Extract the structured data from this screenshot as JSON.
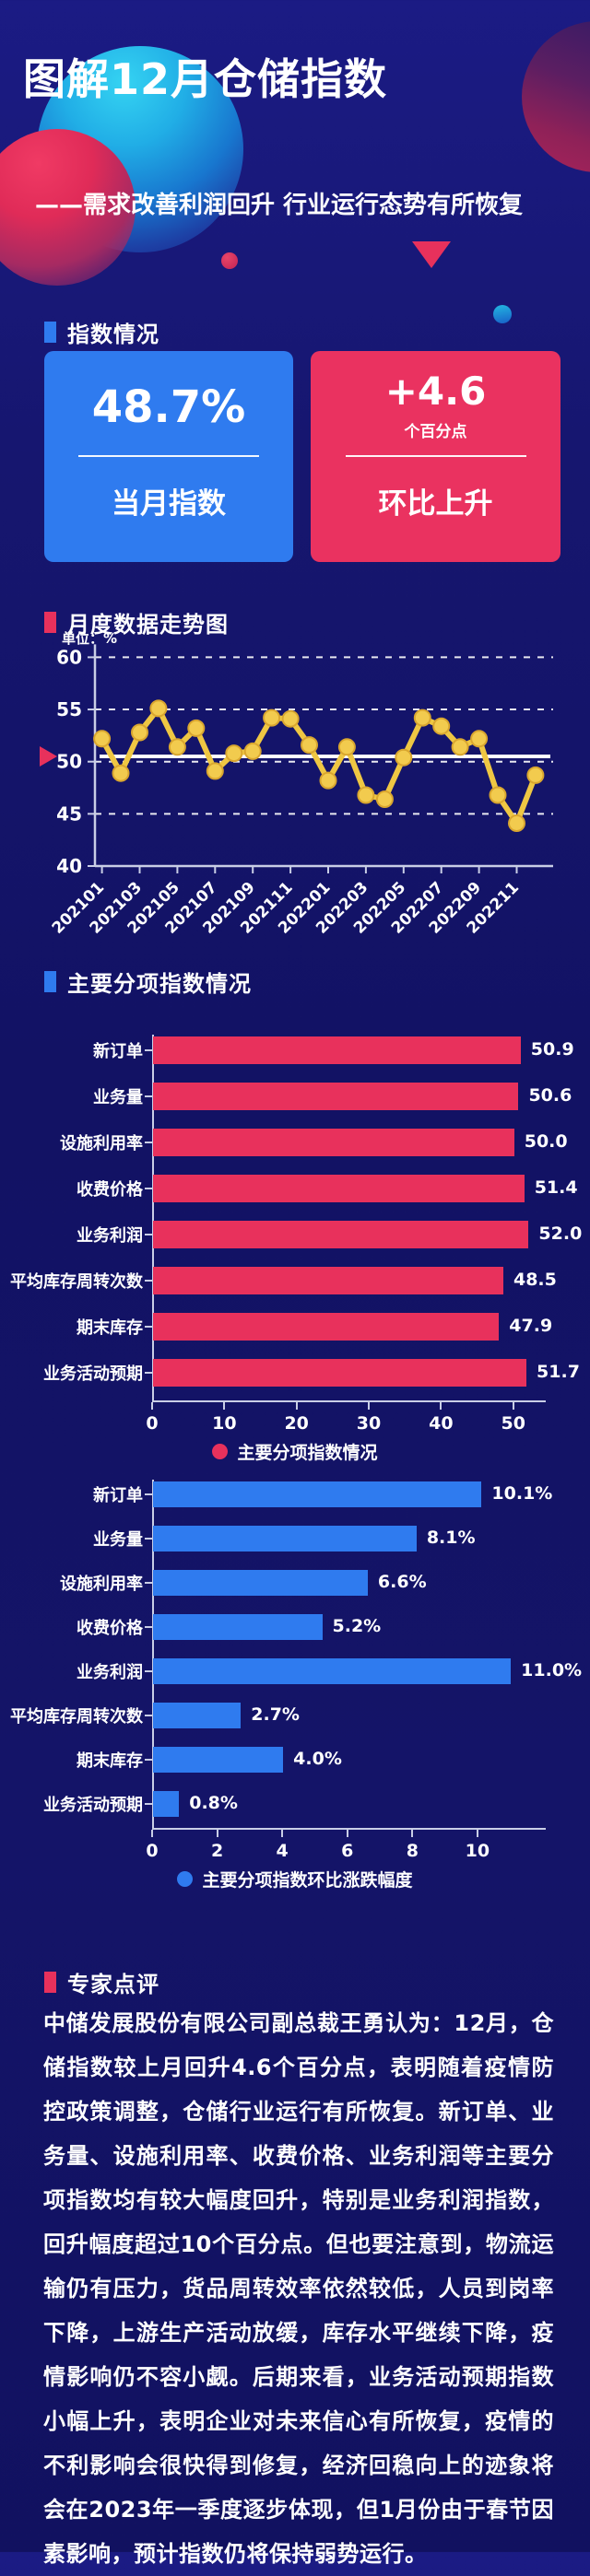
{
  "header": {
    "title": "图解12月仓储指数",
    "subtitle": "——需求改善利润回升 行业运行态势有所恢复"
  },
  "sections": {
    "index_overview": "指数情况",
    "monthly_trend": "月度数据走势图",
    "sub_indices": "主要分项指数情况",
    "expert_comment": "专家点评"
  },
  "cards": {
    "current": {
      "value": "48.7%",
      "label": "当月指数"
    },
    "change": {
      "value": "+4.6",
      "unit": "个百分点",
      "label": "环比上升"
    }
  },
  "chart_data": [
    {
      "type": "line",
      "title": "月度数据走势图",
      "unit_label": "单位：%",
      "x": [
        "202101",
        "202102",
        "202103",
        "202104",
        "202105",
        "202106",
        "202107",
        "202108",
        "202109",
        "202110",
        "202111",
        "202112",
        "202201",
        "202202",
        "202203",
        "202204",
        "202205",
        "202206",
        "202207",
        "202208",
        "202209",
        "202210",
        "202211",
        "202212"
      ],
      "values": [
        52.2,
        48.9,
        52.8,
        55.1,
        51.4,
        53.2,
        49.1,
        50.8,
        51.0,
        54.2,
        54.1,
        51.6,
        48.2,
        51.4,
        46.8,
        46.4,
        50.4,
        54.2,
        53.4,
        51.4,
        52.2,
        46.8,
        44.1,
        48.7
      ],
      "x_tick_labels": [
        "202101",
        "202103",
        "202105",
        "202107",
        "202109",
        "202111",
        "202201",
        "202203",
        "202205",
        "202207",
        "202209",
        "202211"
      ],
      "ylim": [
        40,
        60
      ],
      "yticks": [
        40,
        45,
        50,
        55,
        60
      ],
      "reference_line": 50.5,
      "grid": "dashed horizontal gridlines",
      "line_color": "#EFC743",
      "marker_color": "#F2CB4E"
    },
    {
      "type": "bar",
      "orientation": "horizontal",
      "categories": [
        "新订单",
        "业务量",
        "设施利用率",
        "收费价格",
        "业务利润",
        "平均库存周转次数",
        "期末库存",
        "业务活动预期"
      ],
      "values": [
        50.9,
        50.6,
        50.0,
        51.4,
        52.0,
        48.5,
        47.9,
        51.7
      ],
      "value_labels": [
        "50.9",
        "50.6",
        "50.0",
        "51.4",
        "52.0",
        "48.5",
        "47.9",
        "51.7"
      ],
      "xticks": [
        0,
        10,
        20,
        30,
        40,
        50
      ],
      "xlim": [
        0,
        54.5
      ],
      "legend": "主要分项指数情况",
      "legend_position": "bottom center",
      "bar_color": "#E8315C"
    },
    {
      "type": "bar",
      "orientation": "horizontal",
      "categories": [
        "新订单",
        "业务量",
        "设施利用率",
        "收费价格",
        "业务利润",
        "平均库存周转次数",
        "期末库存",
        "业务活动预期"
      ],
      "values": [
        10.1,
        8.1,
        6.6,
        5.2,
        11.0,
        2.7,
        4.0,
        0.8
      ],
      "value_labels": [
        "10.1%",
        "8.1%",
        "6.6%",
        "5.2%",
        "11.0%",
        "2.7%",
        "4.0%",
        "0.8%"
      ],
      "xticks": [
        0,
        2,
        4,
        6,
        8,
        10
      ],
      "xlim": [
        0,
        12.1
      ],
      "legend": "主要分项指数环比涨跌幅度",
      "legend_position": "bottom center",
      "bar_color": "#2F7BEF"
    }
  ],
  "commentary": "中储发展股份有限公司副总裁王勇认为：12月，仓储指数较上月回升4.6个百分点，表明随着疫情防控政策调整，仓储行业运行有所恢复。新订单、业务量、设施利用率、收费价格、业务利润等主要分项指数均有较大幅度回升，特别是业务利润指数，回升幅度超过10个百分点。但也要注意到，物流运输仍有压力，货品周转效率依然较低，人员到岗率下降，上游生产活动放缓，库存水平继续下降，疫情影响仍不容小觑。后期来看，业务活动预期指数小幅上升，表明企业对未来信心有所恢复，疫情的不利影响会很快得到修复，经济回稳向上的迹象将会在2023年一季度逐步体现，但1月份由于春节因素影响，预计指数仍将保持弱势运行。",
  "colors": {
    "accent_blue": "#2F7BEF",
    "accent_red": "#E8315C",
    "line_yellow": "#EFC743",
    "background_navy": "#15156E"
  }
}
